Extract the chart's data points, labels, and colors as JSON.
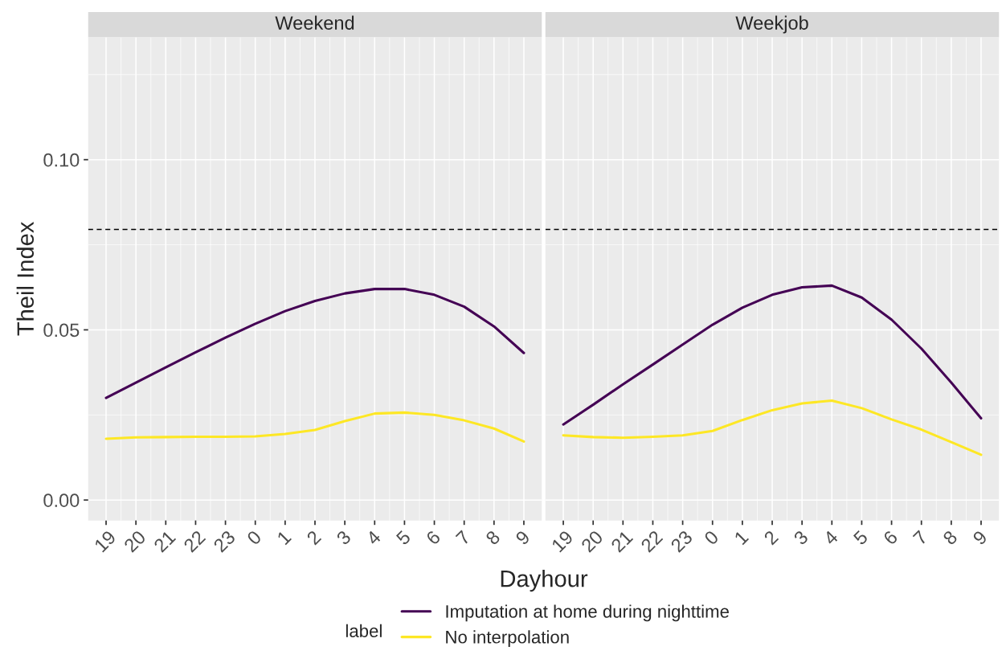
{
  "chart_data": [
    {
      "type": "line",
      "title": "Weekend",
      "xlabel": "Dayhour",
      "ylabel": "Theil Index",
      "legend_title": "label",
      "legend": "bottom",
      "grid": true,
      "categories": [
        "19",
        "20",
        "21",
        "22",
        "23",
        "0",
        "1",
        "2",
        "3",
        "4",
        "5",
        "6",
        "7",
        "8",
        "9"
      ],
      "ylim": [
        -0.006,
        0.136
      ],
      "yticks": [
        {
          "value": 0,
          "label": "0.00"
        },
        0.05,
        {
          "value": 0.1,
          "label": "0.10"
        }
      ],
      "ref_lines": [
        {
          "axis": "y",
          "value": 0.0795,
          "color": "#000000",
          "line_style": "dashed"
        }
      ],
      "series": [
        {
          "name": "Imputation at home during nighttime",
          "color": "#440154",
          "values": [
            0.03,
            0.0345,
            0.039,
            0.0434,
            0.0477,
            0.0518,
            0.0555,
            0.0585,
            0.0607,
            0.062,
            0.062,
            0.0603,
            0.0568,
            0.051,
            0.0432
          ]
        },
        {
          "name": "No interpolation",
          "color": "#fde725",
          "values": [
            0.018,
            0.0184,
            0.0185,
            0.0186,
            0.0186,
            0.0187,
            0.0194,
            0.0206,
            0.0232,
            0.0254,
            0.0257,
            0.025,
            0.0234,
            0.021,
            0.0172
          ]
        }
      ]
    },
    {
      "type": "line",
      "title": "Weekjob",
      "grid": true,
      "tick_labels": "x",
      "categories": [
        "19",
        "20",
        "21",
        "22",
        "23",
        "0",
        "1",
        "2",
        "3",
        "4",
        "5",
        "6",
        "7",
        "8",
        "9"
      ],
      "ylim": [
        -0.006,
        0.136
      ],
      "yticks": [
        0,
        0.05,
        0.1
      ],
      "ref_lines": [
        {
          "axis": "y",
          "value": 0.0795,
          "color": "#000000",
          "line_style": "dashed"
        }
      ],
      "series": [
        {
          "name": "Imputation at home during nighttime",
          "color": "#440154",
          "values": [
            0.0222,
            0.028,
            0.034,
            0.0398,
            0.0457,
            0.0515,
            0.0565,
            0.0603,
            0.0625,
            0.063,
            0.0595,
            0.053,
            0.0445,
            0.0345,
            0.024
          ]
        },
        {
          "name": "No interpolation",
          "color": "#fde725",
          "values": [
            0.019,
            0.0185,
            0.0183,
            0.0186,
            0.019,
            0.0203,
            0.0235,
            0.0264,
            0.0284,
            0.0292,
            0.027,
            0.0237,
            0.0207,
            0.017,
            0.0133
          ]
        }
      ]
    }
  ]
}
